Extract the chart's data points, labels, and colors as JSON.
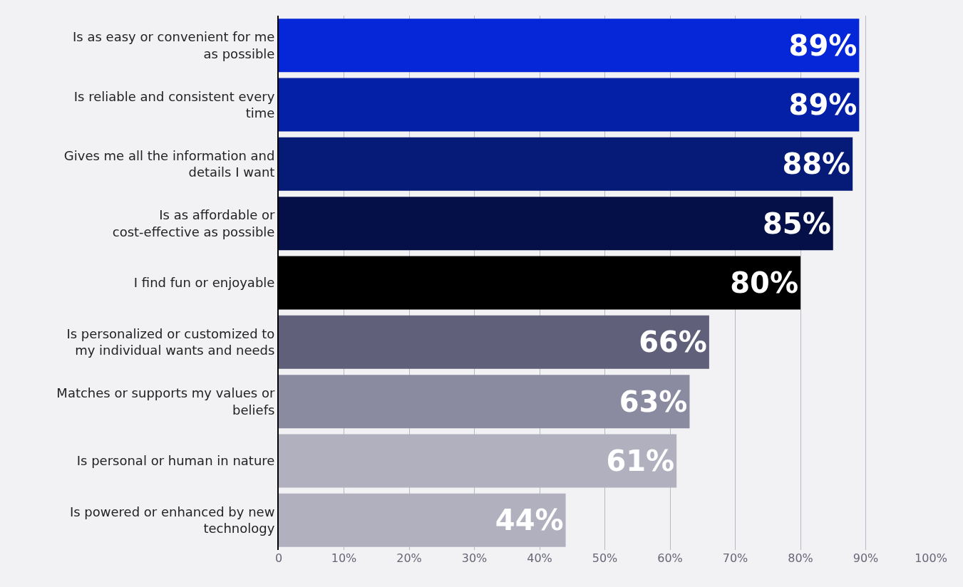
{
  "chart_data": {
    "type": "bar",
    "orientation": "horizontal",
    "categories": [
      "Is as easy or convenient for me as possible",
      "Is reliable and consistent every time",
      "Gives me all the information and details I want",
      "Is as affordable or cost-effective as possible",
      "I find fun or enjoyable",
      "Is personalized or customized to my individual wants and needs",
      "Matches or supports my values or beliefs",
      "Is personal or human in nature",
      "Is powered or enhanced by new technology"
    ],
    "values": [
      89,
      89,
      88,
      85,
      80,
      66,
      63,
      61,
      44
    ],
    "value_labels": [
      "89%",
      "89%",
      "88%",
      "85%",
      "80%",
      "66%",
      "63%",
      "61%",
      "44%"
    ],
    "colors": [
      "#0527d8",
      "#0420a6",
      "#061a78",
      "#050f48",
      "#000000",
      "#60607a",
      "#8a8aa0",
      "#b0b0bf",
      "#b0b0bf"
    ],
    "xlim": [
      0,
      100
    ],
    "xticks": [
      0,
      {
        "value": 10,
        "label": "10%"
      },
      {
        "value": 20,
        "label": "20%"
      },
      {
        "value": 30,
        "label": "30%"
      },
      {
        "value": 40,
        "label": "40%"
      },
      {
        "value": 50,
        "label": "50%"
      },
      {
        "value": 60,
        "label": "60%"
      },
      {
        "value": 70,
        "label": "70%"
      },
      {
        "value": 80,
        "label": "80%"
      },
      {
        "value": 90,
        "label": "90%"
      },
      {
        "value": 100,
        "label": "100%"
      }
    ],
    "grid": "x"
  }
}
